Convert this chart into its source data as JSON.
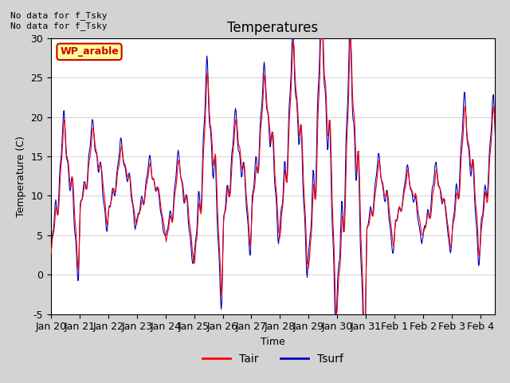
{
  "title": "Temperatures",
  "xlabel": "Time",
  "ylabel": "Temperature (C)",
  "ylim": [
    -5,
    30
  ],
  "xtick_labels": [
    "Jan 20",
    "Jan 21",
    "Jan 22",
    "Jan 23",
    "Jan 24",
    "Jan 25",
    "Jan 26",
    "Jan 27",
    "Jan 28",
    "Jan 29",
    "Jan 30",
    "Jan 31",
    "Feb 1",
    "Feb 2",
    "Feb 3",
    "Feb 4"
  ],
  "legend_entries": [
    "Tair",
    "Tsurf"
  ],
  "tair_color": "#ff0000",
  "tsurf_color": "#0000bb",
  "annotation_text": "No data for f_Tsky\nNo data for f_Tsky",
  "legend_label_box": "WP_arable",
  "legend_box_color": "#ffff99",
  "legend_box_border": "#cc0000",
  "fig_bg_color": "#d3d3d3",
  "plot_bg_color": "#ffffff",
  "grid_color": "#d0d0d0",
  "title_fontsize": 12,
  "label_fontsize": 9,
  "tick_fontsize": 9,
  "annot_fontsize": 8
}
